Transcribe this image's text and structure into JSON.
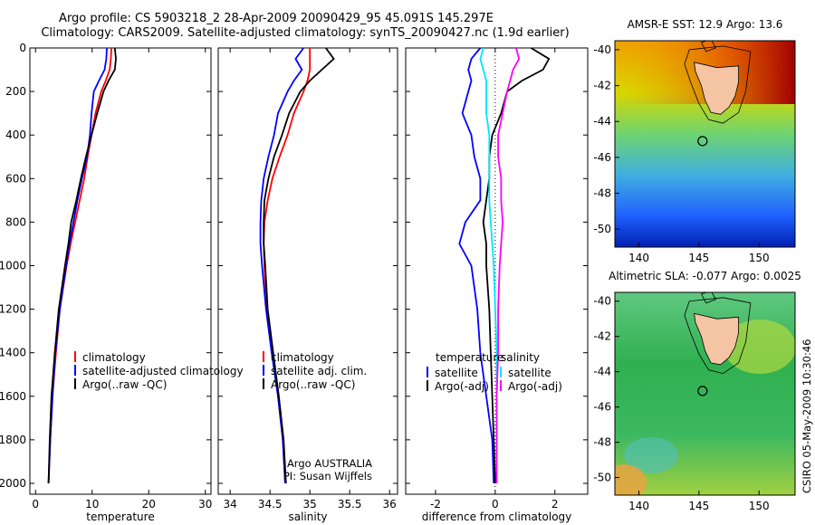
{
  "header": {
    "line1": "Argo profile: CS 5903218_2 28-Apr-2009 20090429_95 45.091S 145.297E",
    "line2": "Climatology: CARS2009. Satellite-adjusted climatology: synTS_20090427.nc (1.9d earlier)"
  },
  "stamp": "CSIRO 05-May-2009 10:30:46",
  "colors": {
    "climatology": "#ff0000",
    "satellite": "#0000ff",
    "argo": "#000000",
    "argo_adj_salinity": "#ff00ff",
    "satellite_salinity": "#00e5ff",
    "land": "#f5c4a3"
  },
  "chart_data": [
    {
      "type": "line",
      "panel": "temperature",
      "xlabel": "temperature",
      "ylabel": "",
      "xlim": [
        -1,
        31
      ],
      "ylim": [
        2050,
        0
      ],
      "xticks": [
        "0",
        "10",
        "20",
        "30"
      ],
      "yticks": [
        "0",
        "200",
        "400",
        "600",
        "800",
        "1000",
        "1200",
        "1400",
        "1600",
        "1800",
        "2000"
      ],
      "y": [
        0,
        50,
        100,
        150,
        200,
        300,
        400,
        500,
        600,
        700,
        800,
        900,
        1000,
        1200,
        1400,
        1600,
        1800,
        2000
      ],
      "series": [
        {
          "name": "climatology",
          "color": "#ff0000",
          "values": [
            13.4,
            13.3,
            13.1,
            12.4,
            11.6,
            10.6,
            9.9,
            9.2,
            8.6,
            7.8,
            7.0,
            6.2,
            5.5,
            4.3,
            3.6,
            3.0,
            2.6,
            2.3
          ]
        },
        {
          "name": "satellite-adjusted climatology",
          "color": "#0000ff",
          "values": [
            12.6,
            12.5,
            12.2,
            11.2,
            10.3,
            9.9,
            9.6,
            9.1,
            8.2,
            7.4,
            6.7,
            6.0,
            5.4,
            4.3,
            3.5,
            3.0,
            2.6,
            2.3
          ]
        },
        {
          "name": "Argo(..raw -QC)",
          "color": "#000000",
          "values": [
            14.0,
            14.2,
            14.0,
            12.9,
            12.0,
            10.9,
            9.9,
            8.9,
            8.0,
            7.2,
            6.3,
            5.8,
            5.2,
            4.1,
            3.4,
            2.8,
            2.5,
            2.3
          ]
        }
      ],
      "legend": {
        "position": "bottom-right",
        "entries": [
          "climatology",
          "satellite-adjusted climatology",
          "Argo(..raw -QC)"
        ]
      }
    },
    {
      "type": "line",
      "panel": "salinity",
      "xlabel": "salinity",
      "xlim": [
        33.85,
        36.1
      ],
      "ylim": [
        2050,
        0
      ],
      "xticks": [
        "34",
        "34.5",
        "35",
        "35.5",
        "36"
      ],
      "y": [
        0,
        50,
        100,
        150,
        200,
        300,
        400,
        500,
        600,
        700,
        800,
        900,
        1000,
        1200,
        1400,
        1600,
        1800,
        2000
      ],
      "series": [
        {
          "name": "climatology",
          "color": "#ff0000",
          "values": [
            35.0,
            35.0,
            35.0,
            34.97,
            34.92,
            34.8,
            34.72,
            34.62,
            34.53,
            34.47,
            34.43,
            34.42,
            34.43,
            34.46,
            34.53,
            34.6,
            34.66,
            34.69
          ]
        },
        {
          "name": "satellite adj. clim.",
          "color": "#0000ff",
          "values": [
            34.92,
            34.82,
            34.9,
            34.8,
            34.72,
            34.6,
            34.55,
            34.48,
            34.42,
            34.39,
            34.38,
            34.38,
            34.4,
            34.45,
            34.52,
            34.6,
            34.66,
            34.69
          ]
        },
        {
          "name": "Argo(..raw -QC)",
          "color": "#000000",
          "values": [
            35.2,
            35.3,
            35.15,
            35.0,
            34.88,
            34.74,
            34.65,
            34.55,
            34.48,
            34.43,
            34.42,
            34.42,
            34.44,
            34.47,
            34.54,
            34.61,
            34.67,
            34.7
          ]
        }
      ],
      "legend": {
        "position": "bottom-right",
        "entries": [
          "climatology",
          "satellite adj. clim.",
          "Argo(..raw -QC)"
        ]
      },
      "annotations": [
        "Argo AUSTRALIA",
        "PI: Susan Wijffels"
      ]
    },
    {
      "type": "line",
      "panel": "difference",
      "xlabel": "difference from climatology",
      "xlim": [
        -3,
        3.1
      ],
      "ylim": [
        2050,
        0
      ],
      "xticks": [
        "-2",
        "0",
        "2"
      ],
      "zero_line": "dotted",
      "y": [
        0,
        50,
        100,
        150,
        200,
        300,
        400,
        500,
        600,
        700,
        800,
        900,
        1000,
        1200,
        1400,
        1600,
        1800,
        2000
      ],
      "series": [
        {
          "name": "temperature satellite",
          "color": "#0000ff",
          "values": [
            -0.5,
            -0.8,
            -0.9,
            -0.8,
            -0.9,
            -1.1,
            -0.8,
            -0.7,
            -0.5,
            -0.5,
            -1.0,
            -1.2,
            -0.8,
            -0.6,
            -0.5,
            -0.3,
            -0.1,
            -0.05
          ]
        },
        {
          "name": "temperature Argo(-adj)",
          "color": "#000000",
          "values": [
            1.2,
            1.8,
            1.6,
            0.9,
            0.4,
            0.2,
            -0.1,
            -0.2,
            -0.2,
            -0.3,
            -0.4,
            -0.3,
            -0.3,
            -0.2,
            -0.15,
            -0.1,
            -0.05,
            0.0
          ]
        },
        {
          "name": "salinity satellite",
          "color": "#00e5ff",
          "values": [
            -0.4,
            -0.5,
            -0.4,
            -0.3,
            -0.3,
            -0.3,
            -0.2,
            -0.2,
            -0.2,
            -0.2,
            -0.15,
            -0.1,
            -0.05,
            0.0,
            0.05,
            0.05,
            0.05,
            0.05
          ]
        },
        {
          "name": "salinity Argo(-adj)",
          "color": "#ff00ff",
          "values": [
            0.7,
            0.8,
            0.6,
            0.5,
            0.4,
            0.25,
            0.1,
            0.1,
            0.2,
            0.2,
            0.25,
            0.2,
            0.15,
            0.1,
            0.1,
            0.05,
            0.05,
            0.05
          ]
        }
      ],
      "legend": {
        "position": "bottom",
        "groups": [
          {
            "title": "temperature",
            "entries": [
              "satellite",
              "Argo(-adj)"
            ]
          },
          {
            "title": "salinity",
            "entries": [
              "satellite",
              "Argo(-adj)"
            ]
          }
        ]
      }
    },
    {
      "type": "heatmap",
      "panel": "map-sst",
      "title": "AMSR-E SST: 12.9 Argo: 13.6",
      "xlim": [
        138,
        153
      ],
      "ylim": [
        -51,
        -39.5
      ],
      "xticks": [
        "140",
        "145",
        "150"
      ],
      "yticks": [
        "-40",
        "-42",
        "-44",
        "-46",
        "-48",
        "-50"
      ],
      "float_position": {
        "lon": 145.297,
        "lat": -45.091
      }
    },
    {
      "type": "heatmap",
      "panel": "map-sla",
      "title": "Altimetric SLA: -0.077 Argo: 0.0025",
      "xlim": [
        138,
        153
      ],
      "ylim": [
        -51,
        -39.5
      ],
      "xticks": [
        "140",
        "145",
        "150"
      ],
      "yticks": [
        "-40",
        "-42",
        "-44",
        "-46",
        "-48",
        "-50"
      ],
      "float_position": {
        "lon": 145.297,
        "lat": -45.091
      }
    }
  ]
}
